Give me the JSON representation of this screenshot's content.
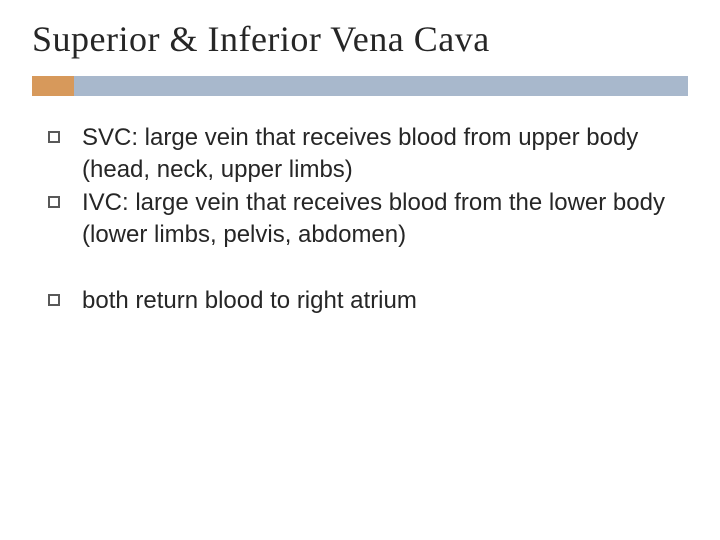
{
  "title": "Superior & Inferior Vena Cava",
  "colors": {
    "accent": "#d7995b",
    "rule": "#a8b8cc",
    "text": "#262626",
    "bullet_border": "#595959",
    "background": "#ffffff"
  },
  "typography": {
    "title_fontsize": 36,
    "title_family": "Georgia, Times New Roman, serif",
    "body_fontsize": 24,
    "body_family": "Arial, Helvetica, sans-serif"
  },
  "groups": [
    {
      "items": [
        {
          "text": "SVC: large vein that receives blood from upper body (head, neck, upper limbs)"
        },
        {
          "text": "IVC: large vein that receives blood from the lower body (lower limbs, pelvis, abdomen)"
        }
      ]
    },
    {
      "items": [
        {
          "text": "both return blood to right atrium"
        }
      ]
    }
  ]
}
